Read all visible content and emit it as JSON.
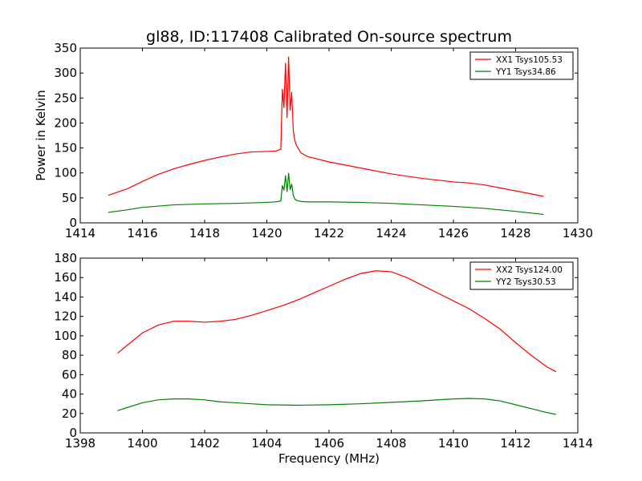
{
  "chart_data": [
    {
      "type": "line",
      "title": "gl88, ID:117408 Calibrated On-source spectrum",
      "xlabel": "",
      "ylabel": "Power in Kelvin",
      "xlim": [
        1414,
        1430
      ],
      "ylim": [
        0,
        350
      ],
      "xticks": [
        "1414",
        "1416",
        "1418",
        "1420",
        "1422",
        "1424",
        "1426",
        "1428",
        "1430"
      ],
      "yticks": [
        "0",
        "50",
        "100",
        "150",
        "200",
        "250",
        "300",
        "350"
      ],
      "grid": false,
      "legend": "top-right",
      "series": [
        {
          "name": "XX1 Tsys105.53",
          "color": "#ff0000",
          "x": [
            1414.9,
            1415.5,
            1416,
            1416.5,
            1417,
            1417.5,
            1418,
            1418.5,
            1419,
            1419.5,
            1420,
            1420.3,
            1420.45,
            1420.5,
            1420.55,
            1420.6,
            1420.65,
            1420.7,
            1420.75,
            1420.8,
            1420.85,
            1420.9,
            1420.95,
            1421.0,
            1421.1,
            1421.3,
            1421.5,
            1422,
            1423,
            1424,
            1425,
            1426,
            1426.5,
            1427,
            1427.5,
            1428,
            1428.5,
            1428.9
          ],
          "y": [
            55,
            68,
            83,
            97,
            108,
            117,
            125,
            132,
            138,
            142,
            143,
            144,
            148,
            268,
            230,
            320,
            210,
            333,
            225,
            262,
            185,
            165,
            155,
            150,
            140,
            133,
            130,
            122,
            110,
            98,
            89,
            82,
            80,
            76,
            70,
            64,
            58,
            53
          ]
        },
        {
          "name": "YY1 Tsys34.86",
          "color": "#008000",
          "x": [
            1414.9,
            1415.5,
            1416,
            1417,
            1418,
            1419,
            1420,
            1420.3,
            1420.45,
            1420.5,
            1420.55,
            1420.6,
            1420.65,
            1420.7,
            1420.75,
            1420.8,
            1420.85,
            1420.9,
            1420.95,
            1421.0,
            1421.1,
            1421.3,
            1422,
            1423,
            1424,
            1425,
            1426,
            1427,
            1428,
            1428.9
          ],
          "y": [
            21,
            26,
            31,
            36,
            38,
            39,
            41,
            42,
            44,
            75,
            65,
            95,
            62,
            100,
            66,
            78,
            55,
            48,
            45,
            44,
            43,
            42,
            42,
            41,
            39,
            36,
            33,
            29,
            23,
            17
          ]
        }
      ]
    },
    {
      "type": "line",
      "title": "",
      "xlabel": "Frequency (MHz)",
      "ylabel": "",
      "xlim": [
        1398,
        1414
      ],
      "ylim": [
        0,
        180
      ],
      "xticks": [
        "1398",
        "1400",
        "1402",
        "1404",
        "1406",
        "1408",
        "1410",
        "1412",
        "1414"
      ],
      "yticks": [
        "0",
        "20",
        "40",
        "60",
        "80",
        "100",
        "120",
        "140",
        "160",
        "180"
      ],
      "grid": false,
      "legend": "top-right",
      "series": [
        {
          "name": "XX2 Tsys124.00",
          "color": "#ff0000",
          "x": [
            1399.2,
            1399.5,
            1400,
            1400.5,
            1401,
            1401.5,
            1402,
            1402.5,
            1403,
            1403.5,
            1404,
            1404.5,
            1405,
            1405.5,
            1406,
            1406.5,
            1407,
            1407.5,
            1408,
            1408.5,
            1409,
            1409.5,
            1410,
            1410.5,
            1411,
            1411.5,
            1412,
            1412.5,
            1413,
            1413.3
          ],
          "y": [
            82,
            90,
            103,
            111,
            115,
            115,
            114,
            115,
            117,
            121,
            126,
            131,
            137,
            144,
            151,
            158,
            164,
            167,
            166,
            160,
            152,
            144,
            136,
            128,
            118,
            107,
            93,
            80,
            68,
            63
          ]
        },
        {
          "name": "YY2 Tsys30.53",
          "color": "#008000",
          "x": [
            1399.2,
            1399.5,
            1400,
            1400.5,
            1401,
            1401.5,
            1402,
            1402.5,
            1403,
            1403.5,
            1404,
            1405,
            1406,
            1407,
            1408,
            1409,
            1410,
            1410.5,
            1411,
            1411.5,
            1412,
            1412.5,
            1413,
            1413.3
          ],
          "y": [
            23,
            26,
            31,
            34,
            35,
            35,
            34,
            32,
            31,
            30,
            29,
            28.5,
            29,
            30,
            31.5,
            33,
            35,
            35.5,
            35,
            33,
            29,
            25,
            21,
            19
          ]
        }
      ]
    }
  ]
}
